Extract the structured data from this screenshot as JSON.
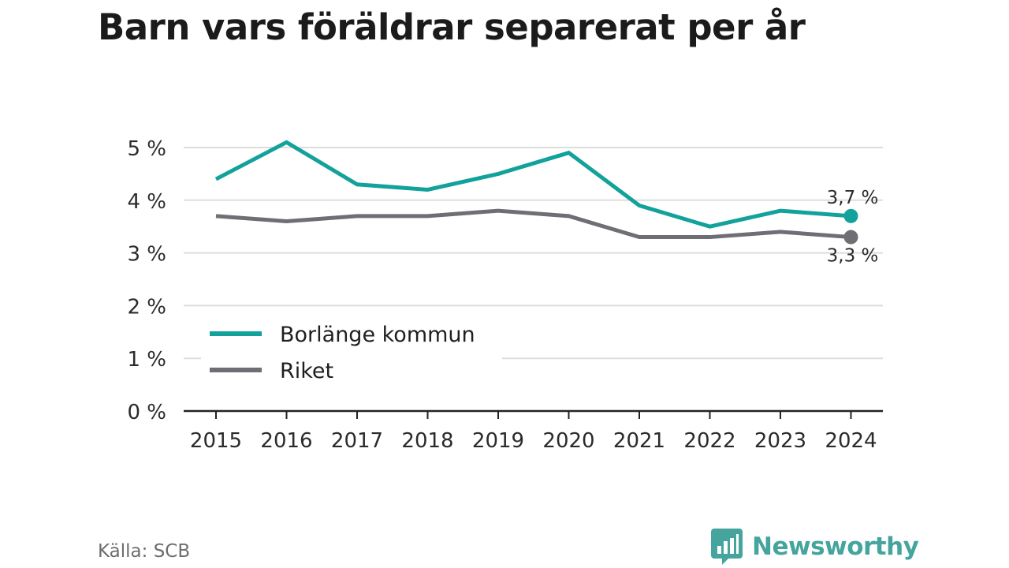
{
  "title": "Barn vars föräldrar separerat per år",
  "source": "Källa: SCB",
  "brand": {
    "name": "Newsworthy",
    "icon": "newsworthy-logo-icon"
  },
  "colors": {
    "borlange": "#13a19b",
    "riket": "#6f6e75",
    "grid": "#dddddd",
    "axis": "#222222",
    "text": "#2b2b2b",
    "brand": "#45a59e"
  },
  "chart_data": {
    "type": "line",
    "title": "Barn vars föräldrar separerat per år",
    "xlabel": "",
    "ylabel": "",
    "categories": [
      "2015",
      "2016",
      "2017",
      "2018",
      "2019",
      "2020",
      "2021",
      "2022",
      "2023",
      "2024"
    ],
    "y_ticks": [
      "0 %",
      "1 %",
      "2 %",
      "3 %",
      "4 %",
      "5 %"
    ],
    "ylim": [
      0,
      5
    ],
    "grid": true,
    "legend_position": "bottom-left",
    "series": [
      {
        "name": "Borlänge kommun",
        "values": [
          4.4,
          5.1,
          4.3,
          4.2,
          4.5,
          4.9,
          3.9,
          3.5,
          3.8,
          3.7
        ],
        "end_label": "3,7 %"
      },
      {
        "name": "Riket",
        "values": [
          3.7,
          3.6,
          3.7,
          3.7,
          3.8,
          3.7,
          3.3,
          3.3,
          3.4,
          3.3
        ],
        "end_label": "3,3 %"
      }
    ]
  }
}
